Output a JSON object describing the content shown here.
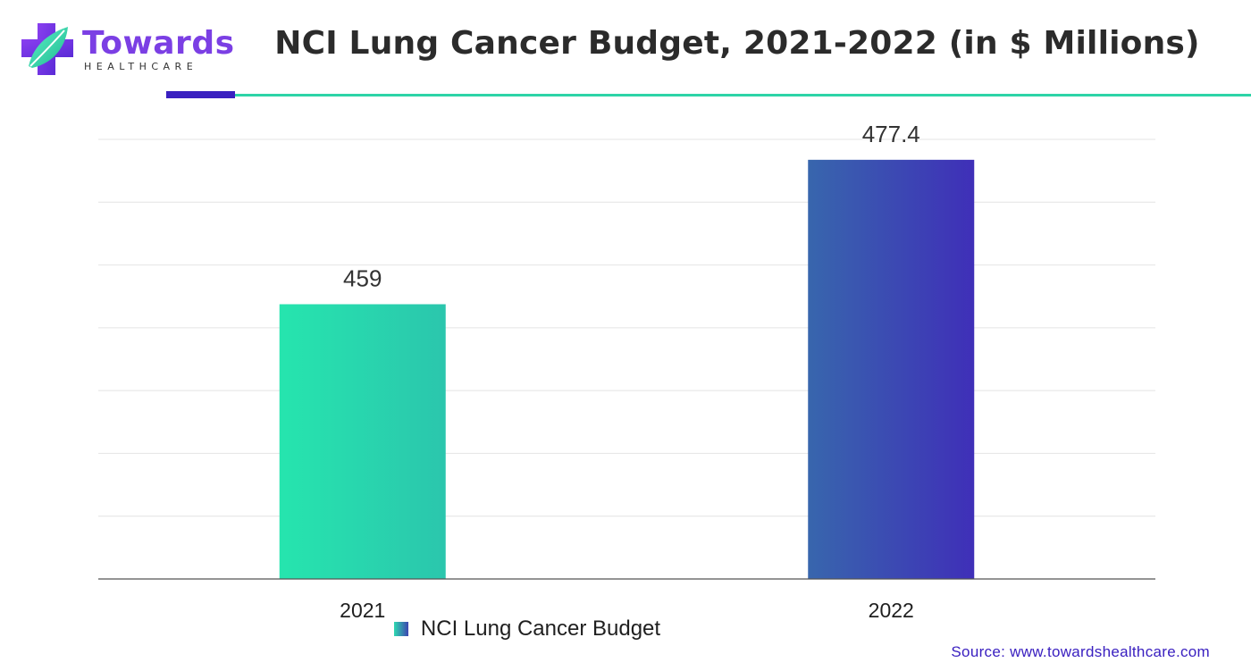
{
  "brand": {
    "name": "Towards",
    "tagline": "HEALTHCARE",
    "primary_color": "#7b3fe4",
    "accent_color": "#2dd4a7"
  },
  "chart_data": {
    "type": "bar",
    "title": "NCI Lung Cancer Budget, 2021-2022 (in $ Millions)",
    "categories": [
      "2021",
      "2022"
    ],
    "series": [
      {
        "name": "NCI Lung Cancer Budget",
        "values": [
          459,
          477.4
        ]
      }
    ],
    "data_labels": [
      "459",
      "477.4"
    ],
    "xlabel": "",
    "ylabel": "",
    "ylim": [
      424,
      480
    ],
    "grid": true,
    "legend_position": "bottom",
    "bar_colors": [
      [
        "#26e5ae",
        "#2bc6ad"
      ],
      [
        "#3866ad",
        "#3f2fb8"
      ]
    ]
  },
  "source": "Source: www.towardshealthcare.com"
}
